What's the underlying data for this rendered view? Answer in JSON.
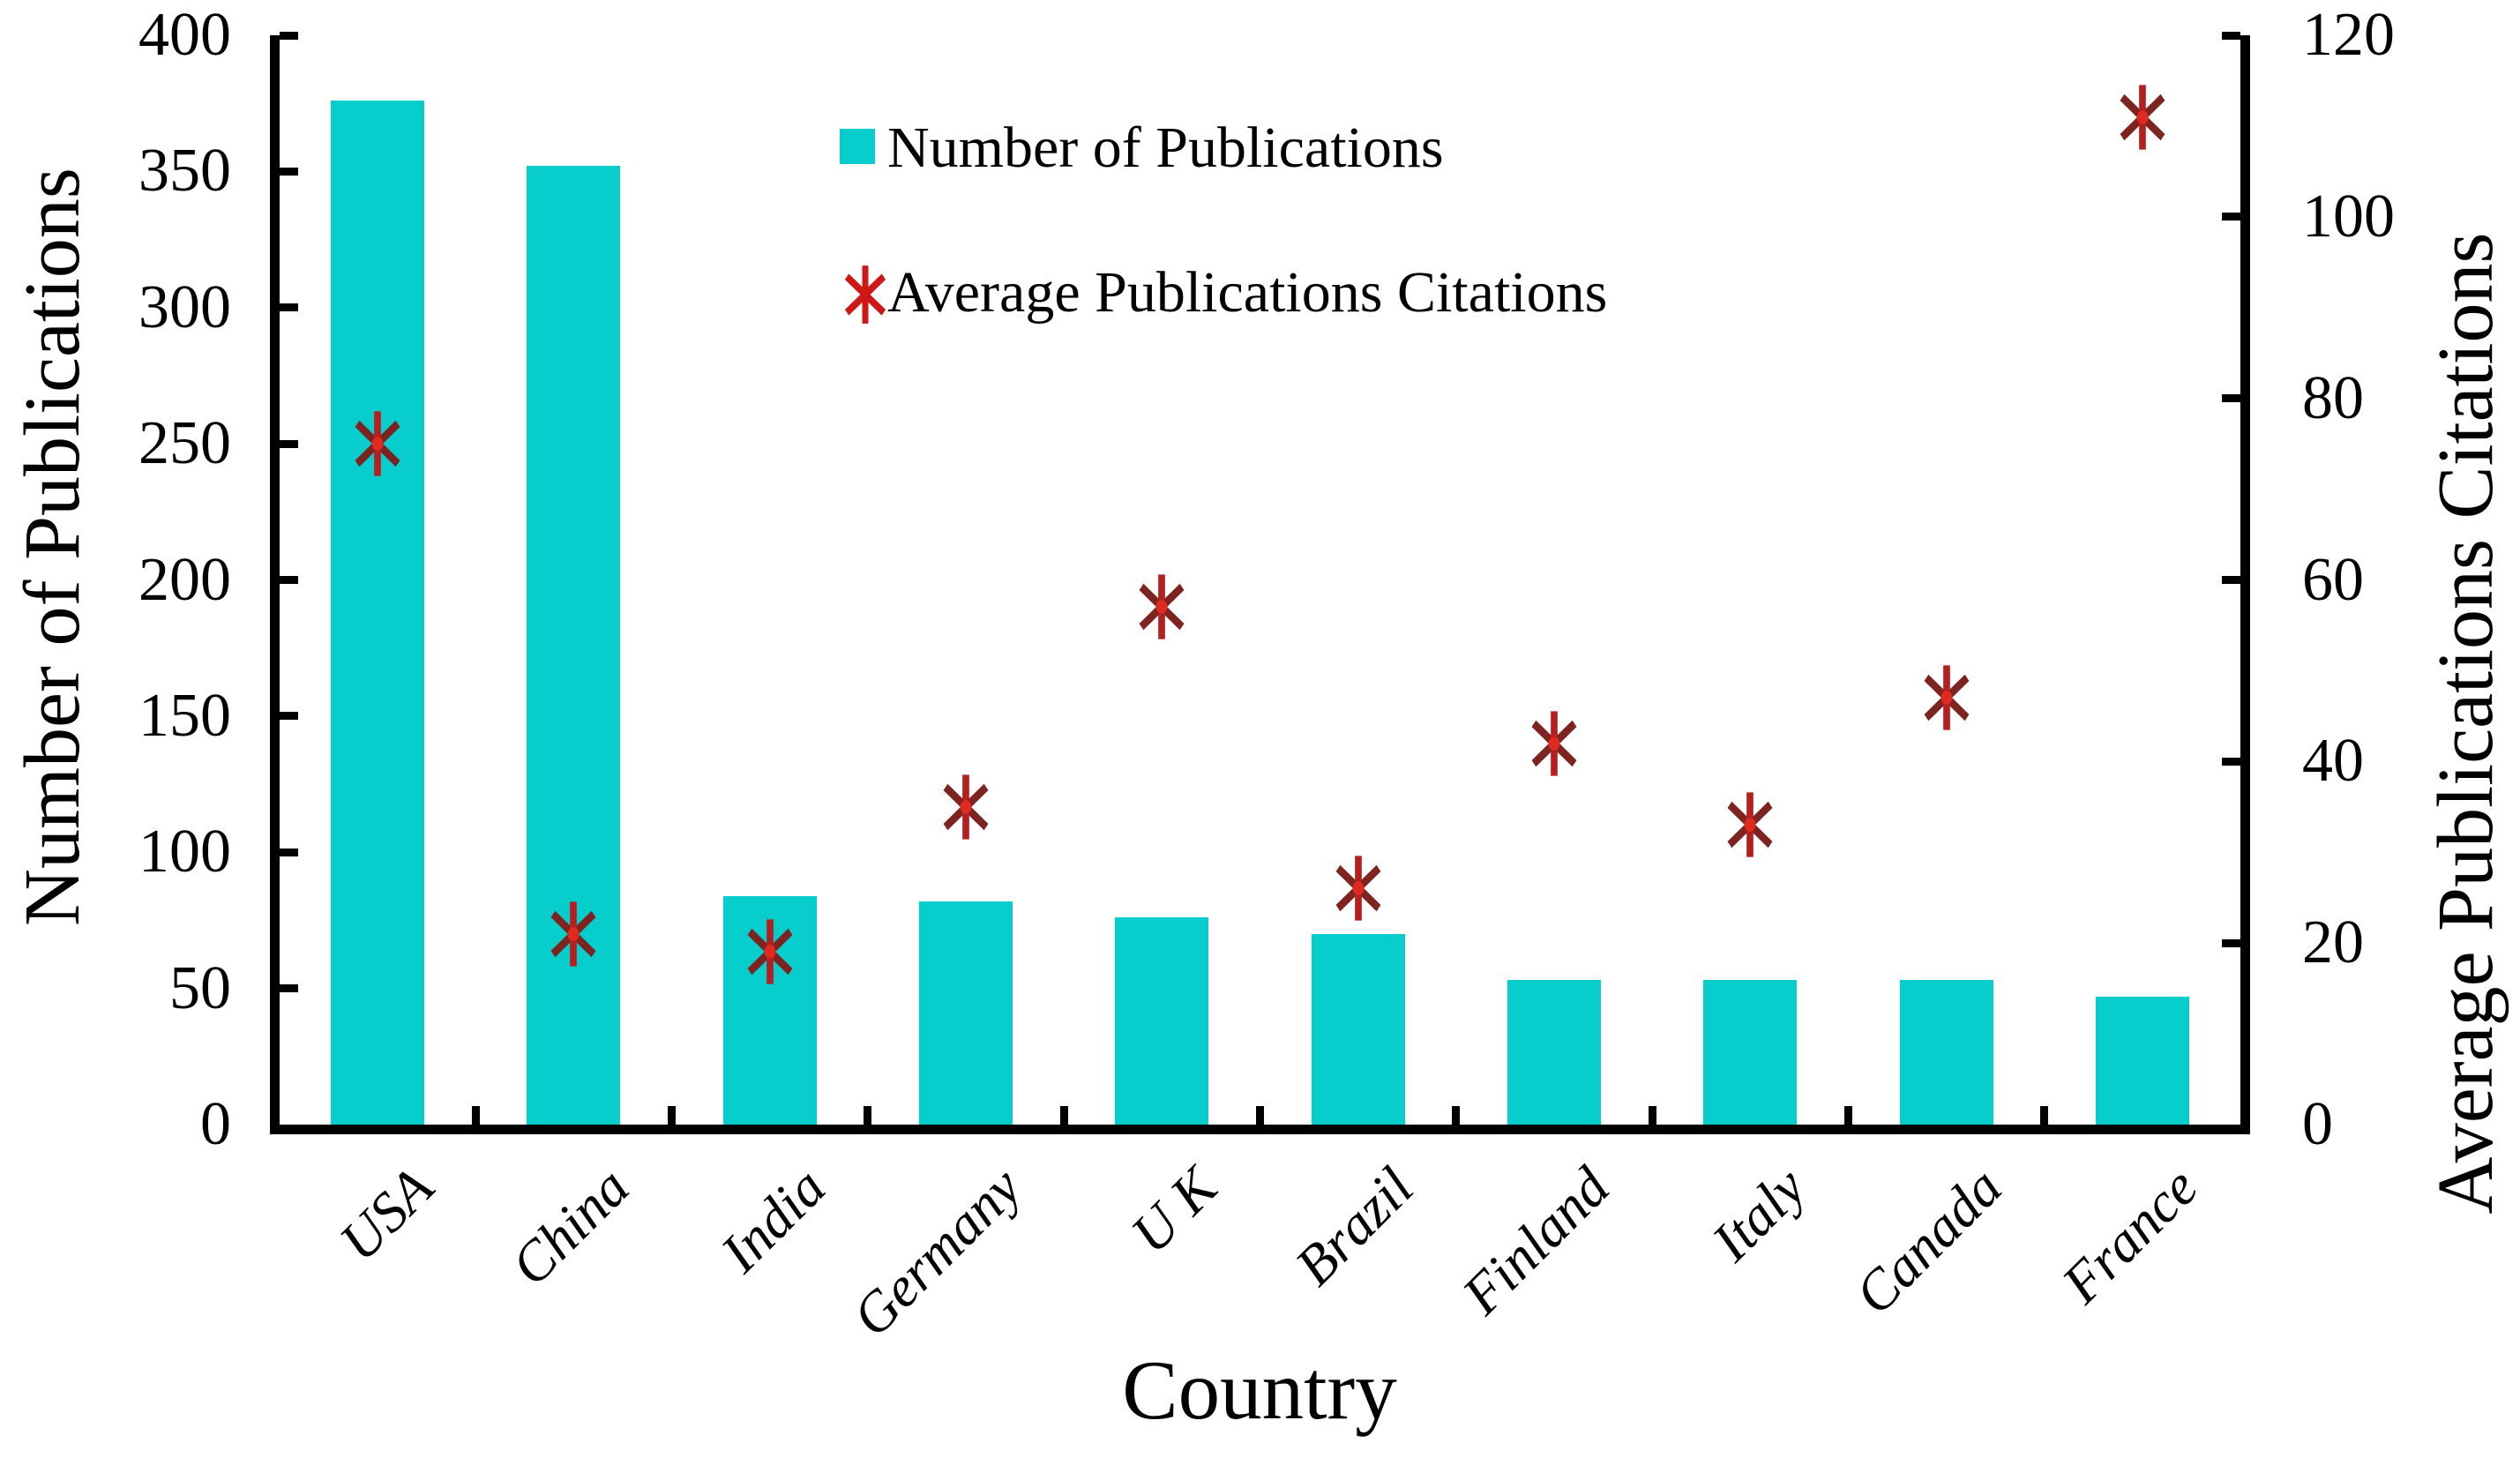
{
  "chart_data": {
    "type": "bar",
    "subtype": "dual-axis column chart with scatter asterisk markers",
    "title": "",
    "categories": [
      "USA",
      "China",
      "India",
      "Germany",
      "U K",
      "Brazil",
      "Finland",
      "Italy",
      "Canada",
      "France"
    ],
    "series": [
      {
        "name": "Number of Publications",
        "type": "bar",
        "axis": "left",
        "values": [
          376,
          352,
          84,
          82,
          76,
          70,
          53,
          53,
          53,
          47
        ]
      },
      {
        "name": "Average Publications Citations",
        "type": "scatter",
        "marker": "asterisk",
        "axis": "right",
        "values": [
          75,
          21,
          19,
          35,
          57,
          26,
          42,
          33,
          47,
          111
        ]
      }
    ],
    "left_axis": {
      "label": "Number of Publications",
      "min": 0,
      "max": 400,
      "tick_step": 50,
      "tick_labels": [
        "0",
        "50",
        "100",
        "150",
        "200",
        "250",
        "300",
        "350",
        "400"
      ]
    },
    "right_axis": {
      "label": "Average Publications Citations",
      "min": 0,
      "max": 120,
      "tick_step": 20,
      "tick_labels": [
        "0",
        "20",
        "40",
        "60",
        "80",
        "100",
        "120"
      ]
    },
    "x_axis": {
      "label": "Country"
    },
    "legend": {
      "position": "inside-top-center"
    },
    "grid": false
  },
  "colors": {
    "bar": "#08cdcd",
    "marker_diagonal": "#7d2420",
    "marker_vertical": "#b51f1f",
    "marker_center": "#e02a1f",
    "legend_marker": "#cf1715",
    "axis": "#000000",
    "text": "#000000",
    "background": "#ffffff"
  }
}
